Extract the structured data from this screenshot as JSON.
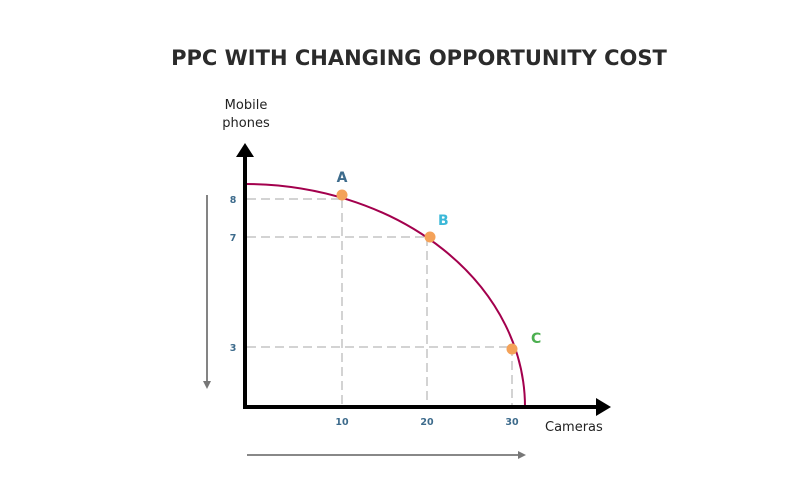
{
  "chart_data": {
    "type": "diagram",
    "title": "PPC WITH CHANGING OPPORTUNITY COST",
    "xlabel": "Cameras",
    "ylabel_line1": "Mobile",
    "ylabel_line2": "phones",
    "x_ticks": [
      "10",
      "20",
      "30"
    ],
    "y_ticks": [
      "8",
      "7",
      "3"
    ],
    "points": [
      {
        "label": "A",
        "x": 10,
        "y": 8,
        "label_color": "#3d6b8c"
      },
      {
        "label": "B",
        "x": 20,
        "y": 7,
        "label_color": "#3bb8d8"
      },
      {
        "label": "C",
        "x": 30,
        "y": 3,
        "label_color": "#4caf50"
      }
    ],
    "colors": {
      "curve": "#a3004d",
      "point": "#f4a259",
      "guides": "#d3d3d3",
      "axis": "#000000",
      "side_arrows": "#777777"
    }
  }
}
